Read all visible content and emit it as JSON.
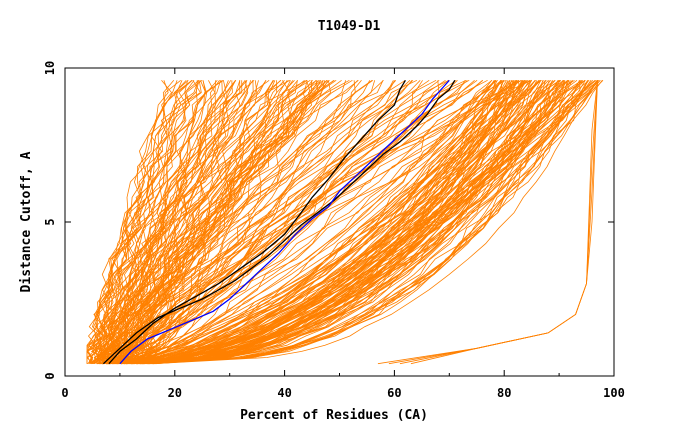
{
  "chart_data": {
    "type": "line",
    "title": "T1049-D1",
    "xlabel": "Percent of Residues (CA)",
    "ylabel": "Distance Cutoff, A",
    "xlim": [
      0,
      100
    ],
    "ylim": [
      0,
      10
    ],
    "x_ticks": [
      "0",
      "20",
      "40",
      "60",
      "80",
      "100"
    ],
    "y_ticks": [
      "0",
      "5",
      "10"
    ],
    "grid": false,
    "legend": "none",
    "colors": {
      "background_models": "#ff8000",
      "highlight_1": "#000000",
      "highlight_2": "#0000ff",
      "axes": "#000000"
    },
    "series": [
      {
        "color": "#000000",
        "points": [
          [
            8,
            0.4
          ],
          [
            10,
            0.8
          ],
          [
            13,
            1.2
          ],
          [
            16,
            1.7
          ],
          [
            20,
            2.2
          ],
          [
            24,
            2.6
          ],
          [
            28,
            3.0
          ],
          [
            32,
            3.5
          ],
          [
            36,
            4.0
          ],
          [
            40,
            4.6
          ],
          [
            43,
            5.3
          ],
          [
            45,
            5.8
          ],
          [
            48,
            6.4
          ],
          [
            51,
            7.1
          ],
          [
            54,
            7.7
          ],
          [
            57,
            8.3
          ],
          [
            60,
            8.8
          ],
          [
            61,
            9.3
          ],
          [
            62,
            9.6
          ]
        ]
      },
      {
        "color": "#000000",
        "points": [
          [
            7,
            0.4
          ],
          [
            10,
            0.9
          ],
          [
            13,
            1.4
          ],
          [
            17,
            1.9
          ],
          [
            21,
            2.2
          ],
          [
            25,
            2.5
          ],
          [
            28,
            2.8
          ],
          [
            31,
            3.1
          ],
          [
            34,
            3.5
          ],
          [
            37,
            3.9
          ],
          [
            40,
            4.4
          ],
          [
            43,
            4.9
          ],
          [
            46,
            5.3
          ],
          [
            49,
            5.7
          ],
          [
            52,
            6.2
          ],
          [
            55,
            6.7
          ],
          [
            58,
            7.2
          ],
          [
            61,
            7.6
          ],
          [
            64,
            8.1
          ],
          [
            66,
            8.5
          ],
          [
            68,
            9.0
          ],
          [
            70,
            9.3
          ],
          [
            71,
            9.6
          ]
        ]
      },
      {
        "color": "#0000ff",
        "points": [
          [
            10,
            0.4
          ],
          [
            12,
            0.8
          ],
          [
            15,
            1.2
          ],
          [
            19,
            1.5
          ],
          [
            23,
            1.8
          ],
          [
            27,
            2.1
          ],
          [
            30,
            2.5
          ],
          [
            33,
            3.0
          ],
          [
            36,
            3.5
          ],
          [
            39,
            4.0
          ],
          [
            42,
            4.6
          ],
          [
            45,
            5.1
          ],
          [
            48,
            5.5
          ],
          [
            50,
            6.0
          ],
          [
            53,
            6.5
          ],
          [
            56,
            7.0
          ],
          [
            59,
            7.5
          ],
          [
            62,
            8.0
          ],
          [
            65,
            8.5
          ],
          [
            67,
            9.0
          ],
          [
            69,
            9.4
          ],
          [
            70,
            9.6
          ]
        ]
      }
    ]
  }
}
